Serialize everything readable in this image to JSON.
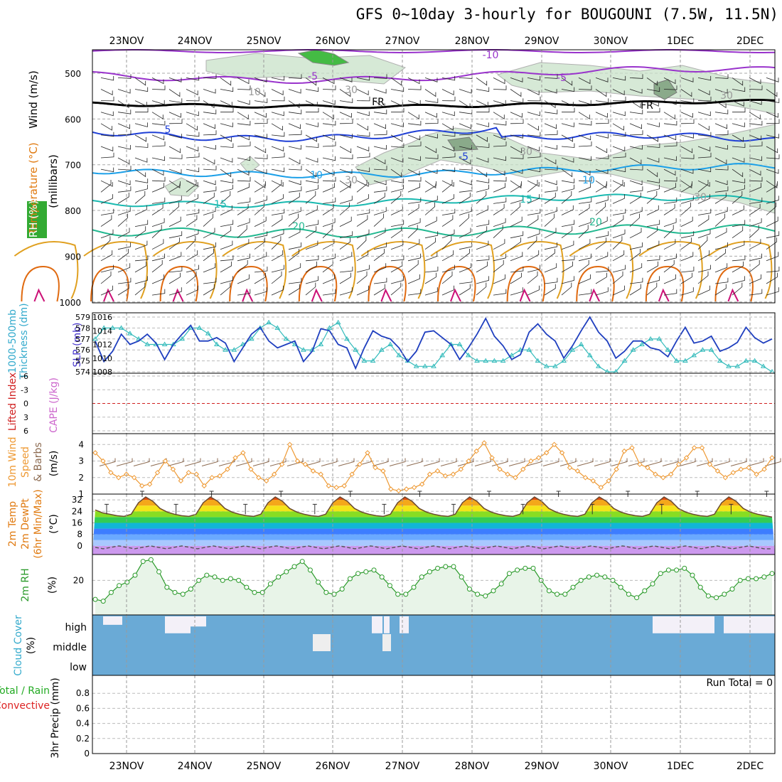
{
  "title": "GFS 0~10day 3-hourly for BOUGOUNI (7.5W, 11.5N)",
  "colors": {
    "wind": "#3333aa",
    "temp_purple": "#9933cc",
    "temp_dblue": "#1f3fd6",
    "temp_lblue": "#1a9fe8",
    "temp_cyan": "#19b9b0",
    "temp_green": "#22b890",
    "temp_yellow": "#e0a020",
    "temp_orange": "#e06a10",
    "rh_fill": "#c8e2c8",
    "slp": "#1f3fbf",
    "thickness": "#33bbbb",
    "lifted": "#d02020",
    "cape": "#cc66cc",
    "wind10": "#ee9933",
    "barbs": "#8c6a50",
    "rh2m": "#2a9a2a",
    "cloud": "#6aaad6",
    "precip_total": "#22aa22",
    "precip_conv": "#dd2222"
  },
  "dates": [
    "23NOV",
    "24NOV",
    "25NOV",
    "26NOV",
    "27NOV",
    "28NOV",
    "29NOV",
    "30NOV",
    "1DEC",
    "2DEC"
  ],
  "panels": {
    "upper": {
      "ylabel_wind": "Wind (m/s)",
      "ylabel_temp": "Temperature (°C)",
      "ylabel_rh": "RH (%)",
      "ylabel_units": "(millibars)",
      "levels": [
        "500",
        "600",
        "700",
        "800",
        "900",
        "1000"
      ],
      "contour_labels": [
        "-10",
        "-5",
        "FR",
        "-5",
        "5",
        "10",
        "15",
        "20",
        "30",
        "10",
        "-10",
        "-5",
        "-5",
        "5",
        "10",
        "15",
        "20",
        "FR",
        "30",
        "30",
        "30",
        "30"
      ]
    },
    "slp": {
      "ylabel_a": "1000-500mb",
      "ylabel_b": "Thickness (dm)",
      "ylabel_c": "SLP (mb)",
      "left_ticks": [
        "579",
        "578",
        "577",
        "576",
        "575",
        "574"
      ],
      "right_ticks": [
        "1016",
        "1014",
        "1012",
        "1010",
        "1008"
      ]
    },
    "li": {
      "ylabel_a": "Lifted Index",
      "ylabel_b": "CAPE (J/kg)",
      "ticks": [
        "-6",
        "-3",
        "0",
        "3",
        "6"
      ]
    },
    "wind10": {
      "ylabel_a": "10m Wind",
      "ylabel_b": "Speed",
      "ylabel_c": "& Barbs",
      "ylabel_d": "(m/s)",
      "ticks": [
        "1",
        "2",
        "3",
        "4"
      ]
    },
    "temp2m": {
      "ylabel_a": "2m Temp",
      "ylabel_b": "2m DewPt",
      "ylabel_c": "(6hr Min/Max)",
      "ylabel_d": "(°C)",
      "ticks": [
        "0",
        "8",
        "16",
        "24",
        "32"
      ]
    },
    "rh2m": {
      "ylabel_a": "2m RH",
      "ylabel_b": "(%)",
      "ticks": [
        "20"
      ]
    },
    "cloud": {
      "ylabel_a": "Cloud Cover",
      "ylabel_b": "(%)",
      "levels": [
        "high",
        "middle",
        "low"
      ]
    },
    "precip": {
      "ylabel_a": "Total / Rain",
      "ylabel_b": "Convective",
      "ylabel_c": "3hr Precip (mm)",
      "ticks": [
        "0",
        "0.2",
        "0.4",
        "0.6",
        "0.8"
      ],
      "run_total": "Run Total = 0"
    }
  },
  "chart_data": [
    {
      "type": "line",
      "title": "1000-500mb Thickness (dm) and SLP (mb)",
      "series": [
        {
          "name": "SLP (mb)",
          "values": [
            1012.5,
            1009.5,
            1011,
            1013.5,
            1012,
            1012.5,
            1013.5,
            1012.2,
            1009.8,
            1012,
            1013.5,
            1014.8,
            1012.5,
            1012.5,
            1013,
            1012.2,
            1009.5,
            1011.5,
            1013.5,
            1014.5,
            1012.5,
            1011.5,
            1012,
            1012.5,
            1009.5,
            1011,
            1014.3,
            1014,
            1012,
            1011.5,
            1008.5,
            1011.5,
            1014,
            1013.2,
            1012.8,
            1011.5,
            1009.5,
            1011,
            1013.8,
            1014,
            1013,
            1012,
            1009.8,
            1011.5,
            1013.5,
            1015.8,
            1013.2,
            1011.8,
            1009.8,
            1010.5,
            1013.8,
            1015,
            1013.5,
            1012.5,
            1010,
            1011.8,
            1014,
            1016,
            1013.8,
            1012.5,
            1010,
            1011,
            1012.5,
            1012.5,
            1011.5,
            1011.2,
            1010.2,
            1012.5,
            1014.5,
            1012.2,
            1012.5,
            1013.2,
            1011,
            1011.5,
            1012.3,
            1014.5,
            1013,
            1012.2,
            1012.8
          ]
        },
        {
          "name": "1000-500mb Thickness (dm)",
          "values": [
            577,
            578,
            578,
            578,
            577.5,
            577,
            576.5,
            576.5,
            576.5,
            576.5,
            577,
            578,
            578,
            577.5,
            576.5,
            576,
            576,
            576.5,
            577,
            578,
            578.5,
            578,
            577,
            576.5,
            576,
            576,
            576.5,
            578,
            578.5,
            577,
            576,
            575,
            575,
            576,
            576.5,
            575.5,
            575,
            574.5,
            574.5,
            574.5,
            575.5,
            576.5,
            576.5,
            575.5,
            575,
            575,
            575,
            575,
            575.5,
            576,
            576,
            575,
            574.5,
            574.5,
            575,
            576,
            576.5,
            575.5,
            574.5,
            574,
            574,
            575,
            576,
            576.5,
            577,
            577,
            576,
            575,
            575,
            575.5,
            576,
            576,
            575,
            574.5,
            574.5,
            575,
            575,
            574.5,
            574
          ]
        }
      ],
      "left_ylim": [
        574,
        579
      ],
      "right_ylim": [
        1008,
        1016
      ]
    },
    {
      "type": "line",
      "title": "10m Wind Speed (m/s)",
      "series": [
        {
          "name": "10m Wind Speed",
          "values": [
            3.5,
            3,
            2.3,
            2,
            2.2,
            2,
            1.5,
            1.6,
            2.3,
            3,
            2.5,
            1.8,
            2.3,
            2.2,
            1.5,
            2,
            2.1,
            2.5,
            3.2,
            3.5,
            2.5,
            2,
            1.8,
            2.2,
            2.8,
            4,
            3,
            2.8,
            2.4,
            2.2,
            1.5,
            1.4,
            1.5,
            2.2,
            2.8,
            3.5,
            2.6,
            2.4,
            1.3,
            1.2,
            1.3,
            1.4,
            1.6,
            2.2,
            2.4,
            2.1,
            2.2,
            2.5,
            3,
            3.6,
            4.1,
            3.2,
            2.5,
            2.2,
            2,
            2.5,
            3,
            3.2,
            3.5,
            4,
            3.5,
            2.6,
            2.4,
            2,
            1.8,
            1.4,
            1.8,
            2.5,
            3.6,
            3.8,
            2.8,
            2.6,
            2.2,
            2,
            2.2,
            2.8,
            3.2,
            3.8,
            3.8,
            2.8,
            2.4,
            2,
            2.3,
            2.5,
            2.6,
            2.2,
            2.5,
            3.2
          ]
        }
      ],
      "ylim": [
        1,
        4.5
      ]
    },
    {
      "type": "area",
      "title": "2m Temp (°C)",
      "series": [
        {
          "name": "2m Temp",
          "values": [
            25,
            23,
            22,
            21,
            20.5,
            22,
            30,
            34,
            31,
            26,
            23.5,
            22,
            21,
            20.5,
            22,
            30,
            34,
            31,
            26,
            23.5,
            22,
            21,
            20.5,
            22,
            30,
            34,
            31,
            26,
            23.5,
            22,
            21,
            20.5,
            22,
            30,
            34,
            31,
            26,
            23.5,
            22,
            21,
            20.5,
            22,
            30,
            34,
            31,
            26,
            23.5,
            22,
            21,
            20.5,
            22,
            30,
            34,
            31,
            26,
            23.5,
            22,
            21,
            20.5,
            22,
            30,
            34,
            31,
            26,
            23.5,
            22,
            21,
            20.5,
            22,
            30,
            34,
            31,
            26,
            23.5,
            22,
            21,
            20.5,
            22,
            30,
            34,
            31,
            26,
            23.5,
            22,
            21,
            20.5,
            22,
            30,
            34,
            31,
            26,
            23.5,
            22,
            21,
            20
          ]
        },
        {
          "name": "2m DewPt",
          "values": [
            -1,
            -2,
            -1,
            0,
            -1,
            -2,
            -1,
            0,
            -1,
            -2,
            -1,
            0,
            -1,
            -2,
            -1,
            0,
            -1,
            -2,
            -1,
            0,
            -1,
            -2,
            -1,
            0,
            -1,
            -2,
            -1,
            0,
            -1,
            -2,
            -1,
            0,
            -1,
            -2,
            -1,
            0,
            -1,
            -2,
            -1,
            0,
            -1,
            -2,
            -1,
            0,
            -1,
            -2,
            -1,
            0,
            -1,
            -2,
            -1,
            0,
            -1,
            -2,
            -1,
            0,
            -1,
            -2,
            -1,
            0,
            -1,
            -2,
            -1,
            0,
            -1,
            -2,
            -1,
            0,
            -1,
            -2,
            -1,
            0,
            -1,
            -2,
            -1,
            0,
            -1,
            -2,
            -1,
            0,
            -1,
            -2,
            -1,
            0,
            -1,
            -2,
            -2
          ]
        }
      ],
      "ylim": [
        -6,
        36
      ]
    },
    {
      "type": "area",
      "title": "2m RH (%)",
      "series": [
        {
          "name": "2m RH",
          "values": [
            9,
            8,
            13,
            17,
            19,
            23,
            31,
            32,
            25,
            16,
            13,
            12,
            15,
            20,
            23,
            22,
            20,
            21,
            20,
            16,
            13,
            13,
            18,
            22,
            25,
            28,
            31,
            26,
            19,
            13,
            12,
            15,
            21,
            24,
            25,
            26,
            22,
            17,
            12,
            12,
            16,
            22,
            25,
            27,
            28,
            28,
            22,
            15,
            12,
            11,
            14,
            18,
            24,
            26,
            27,
            27,
            20,
            14,
            12,
            12,
            16,
            20,
            22,
            23,
            22,
            20,
            16,
            12,
            10,
            14,
            18,
            24,
            26,
            26,
            27,
            23,
            16,
            11,
            10,
            12,
            15,
            20,
            21,
            21,
            22,
            24
          ]
        }
      ],
      "ylim": [
        0,
        35
      ]
    },
    {
      "type": "area",
      "title": "3hr Precip (mm)",
      "series": [
        {
          "name": "Total / Rain",
          "values": [
            0,
            0,
            0,
            0,
            0,
            0,
            0,
            0,
            0,
            0
          ]
        },
        {
          "name": "Convective",
          "values": [
            0,
            0,
            0,
            0,
            0,
            0,
            0,
            0,
            0,
            0
          ]
        }
      ],
      "ylim": [
        0,
        1
      ]
    }
  ]
}
